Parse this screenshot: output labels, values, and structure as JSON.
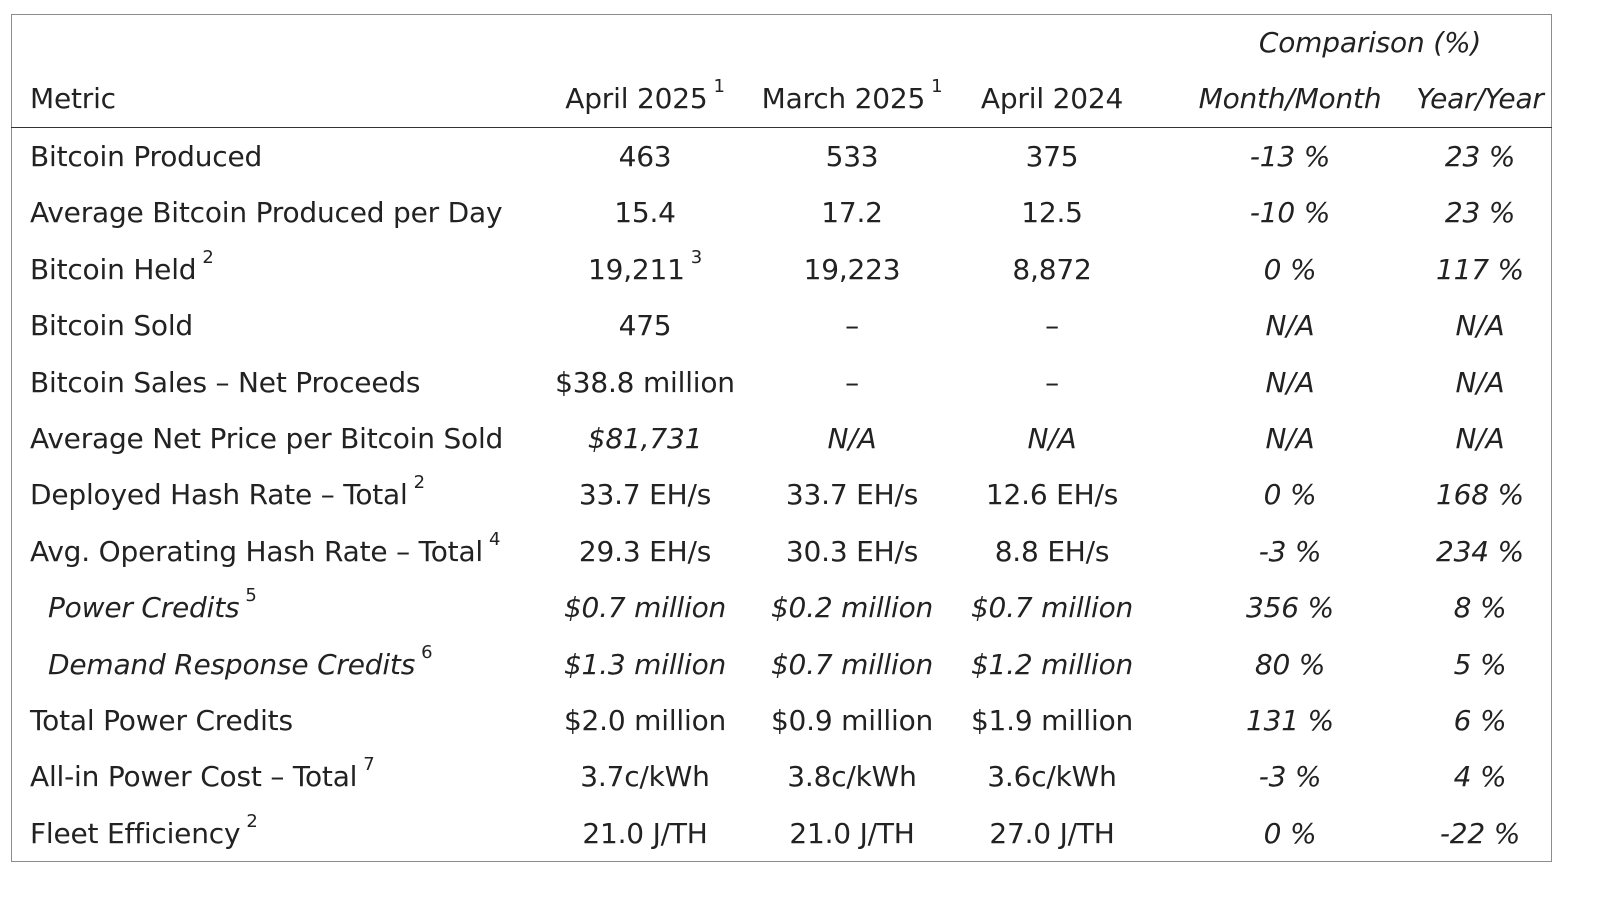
{
  "header": {
    "comparison_label": "Comparison (%)",
    "metric_label": "Metric",
    "col_apr2025": "April 2025",
    "col_apr2025_note": "1",
    "col_mar2025": "March 2025",
    "col_mar2025_note": "1",
    "col_apr2024": "April 2024",
    "col_mom": "Month/Month",
    "col_yoy": "Year/Year"
  },
  "rows": [
    {
      "metric": "Bitcoin Produced",
      "note": "",
      "apr2025": "463",
      "apr2025_note": "",
      "mar2025": "533",
      "apr2024": "375",
      "mom": "-13 %",
      "yoy": "23 %"
    },
    {
      "metric": "Average Bitcoin Produced per Day",
      "note": "",
      "apr2025": "15.4",
      "apr2025_note": "",
      "mar2025": "17.2",
      "apr2024": "12.5",
      "mom": "-10 %",
      "yoy": "23 %"
    },
    {
      "metric": "Bitcoin Held",
      "note": "2",
      "apr2025": "19,211",
      "apr2025_note": "3",
      "mar2025": "19,223",
      "apr2024": "8,872",
      "mom": "0 %",
      "yoy": "117 %"
    },
    {
      "metric": "Bitcoin Sold",
      "note": "",
      "apr2025": "475",
      "apr2025_note": "",
      "mar2025": "–",
      "apr2024": "–",
      "mom": "N/A",
      "yoy": "N/A"
    },
    {
      "metric": "Bitcoin Sales – Net Proceeds",
      "note": "",
      "apr2025": "$38.8 million",
      "apr2025_note": "",
      "mar2025": "–",
      "apr2024": "–",
      "mom": "N/A",
      "yoy": "N/A"
    },
    {
      "metric": "Average Net Price per Bitcoin Sold",
      "note": "",
      "apr2025": "$81,731",
      "apr2025_note": "",
      "mar2025": "N/A",
      "apr2024": "N/A",
      "mom": "N/A",
      "yoy": "N/A"
    },
    {
      "metric": "Deployed Hash Rate – Total",
      "note": "2",
      "apr2025": "33.7 EH/s",
      "apr2025_note": "",
      "mar2025": "33.7 EH/s",
      "apr2024": "12.6 EH/s",
      "mom": "0 %",
      "yoy": "168 %"
    },
    {
      "metric": "Avg. Operating Hash Rate – Total",
      "note": "4",
      "apr2025": "29.3 EH/s",
      "apr2025_note": "",
      "mar2025": "30.3 EH/s",
      "apr2024": "8.8 EH/s",
      "mom": "-3 %",
      "yoy": "234 %"
    },
    {
      "metric": "Power Credits",
      "note": "5",
      "apr2025": "$0.7 million",
      "apr2025_note": "",
      "mar2025": "$0.2 million",
      "apr2024": "$0.7 million",
      "mom": "356 %",
      "yoy": "8 %"
    },
    {
      "metric": "Demand Response Credits",
      "note": "6",
      "apr2025": "$1.3 million",
      "apr2025_note": "",
      "mar2025": "$0.7 million",
      "apr2024": "$1.2 million",
      "mom": "80 %",
      "yoy": "5 %"
    },
    {
      "metric": "Total Power Credits",
      "note": "",
      "apr2025": "$2.0 million",
      "apr2025_note": "",
      "mar2025": "$0.9 million",
      "apr2024": "$1.9 million",
      "mom": "131 %",
      "yoy": "6 %"
    },
    {
      "metric": "All-in Power Cost – Total",
      "note": "7",
      "apr2025": "3.7c/kWh",
      "apr2025_note": "",
      "mar2025": "3.8c/kWh",
      "apr2024": "3.6c/kWh",
      "mom": "-3 %",
      "yoy": "4 %"
    },
    {
      "metric": "Fleet Efficiency",
      "note": "2",
      "apr2025": "21.0 J/TH",
      "apr2025_note": "",
      "mar2025": "21.0 J/TH",
      "apr2024": "27.0 J/TH",
      "mom": "0 %",
      "yoy": "-22 %"
    }
  ]
}
